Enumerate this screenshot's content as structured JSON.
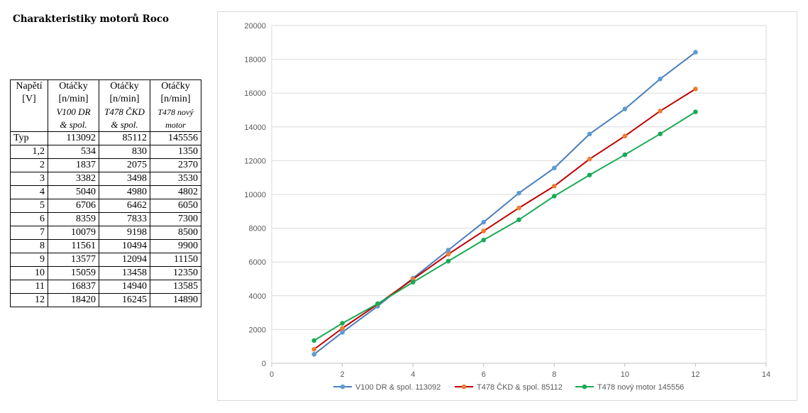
{
  "sheet": {
    "title": "Charakteristiky motorů Roco"
  },
  "table": {
    "header_row1": [
      "Napětí",
      "Otáčky",
      "Otáčky",
      "Otáčky"
    ],
    "header_row2": [
      "[V]",
      "[n/min]",
      "[n/min]",
      "[n/min]"
    ],
    "header_row3": [
      "",
      "V100 DR",
      "T478 ČKD",
      "T478 nový"
    ],
    "header_row4": [
      "",
      "& spol.",
      "& spol.",
      "motor"
    ],
    "typ_row": [
      "Typ",
      "113092",
      "85112",
      "145556"
    ],
    "rows": [
      [
        "1,2",
        "534",
        "830",
        "1350"
      ],
      [
        "2",
        "1837",
        "2075",
        "2370"
      ],
      [
        "3",
        "3382",
        "3498",
        "3530"
      ],
      [
        "4",
        "5040",
        "4980",
        "4802"
      ],
      [
        "5",
        "6706",
        "6462",
        "6050"
      ],
      [
        "6",
        "8359",
        "7833",
        "7300"
      ],
      [
        "7",
        "10079",
        "9198",
        "8500"
      ],
      [
        "8",
        "11561",
        "10494",
        "9900"
      ],
      [
        "9",
        "13577",
        "12094",
        "11150"
      ],
      [
        "10",
        "15059",
        "13458",
        "12350"
      ],
      [
        "11",
        "16837",
        "14940",
        "13585"
      ],
      [
        "12",
        "18420",
        "16245",
        "14890"
      ]
    ]
  },
  "chart_data": {
    "type": "scatter",
    "mode": "lines+markers",
    "title": "",
    "xlabel": "",
    "ylabel": "",
    "xlim": [
      0,
      14
    ],
    "ylim": [
      0,
      20000
    ],
    "x_ticks": [
      "0",
      "2",
      "4",
      "6",
      "8",
      "10",
      "12",
      "14"
    ],
    "y_ticks": [
      "0",
      "2000",
      "4000",
      "6000",
      "8000",
      "10000",
      "12000",
      "14000",
      "16000",
      "18000",
      "20000"
    ],
    "grid": "horizontal",
    "legend": "bottom",
    "x": [
      1.2,
      2,
      3,
      4,
      5,
      6,
      7,
      8,
      9,
      10,
      11,
      12
    ],
    "series": [
      {
        "name": "V100 DR & spol. 113092",
        "line_color": "#4a7ebb",
        "marker_color": "#5b9bd5",
        "values": [
          534,
          1837,
          3382,
          5040,
          6706,
          8359,
          10079,
          11561,
          13577,
          15059,
          16837,
          18420
        ]
      },
      {
        "name": "T478 ČKD & spol. 85112",
        "line_color": "#c00000",
        "marker_color": "#ed7d31",
        "values": [
          830,
          2075,
          3498,
          4980,
          6462,
          7833,
          9198,
          10494,
          12094,
          13458,
          14940,
          16245
        ]
      },
      {
        "name": "T478 nový motor 145556",
        "line_color": "#1aaa55",
        "marker_color": "#1aaa55",
        "values": [
          1350,
          2370,
          3530,
          4802,
          6050,
          7300,
          8500,
          9900,
          11150,
          12350,
          13585,
          14890
        ]
      }
    ]
  }
}
